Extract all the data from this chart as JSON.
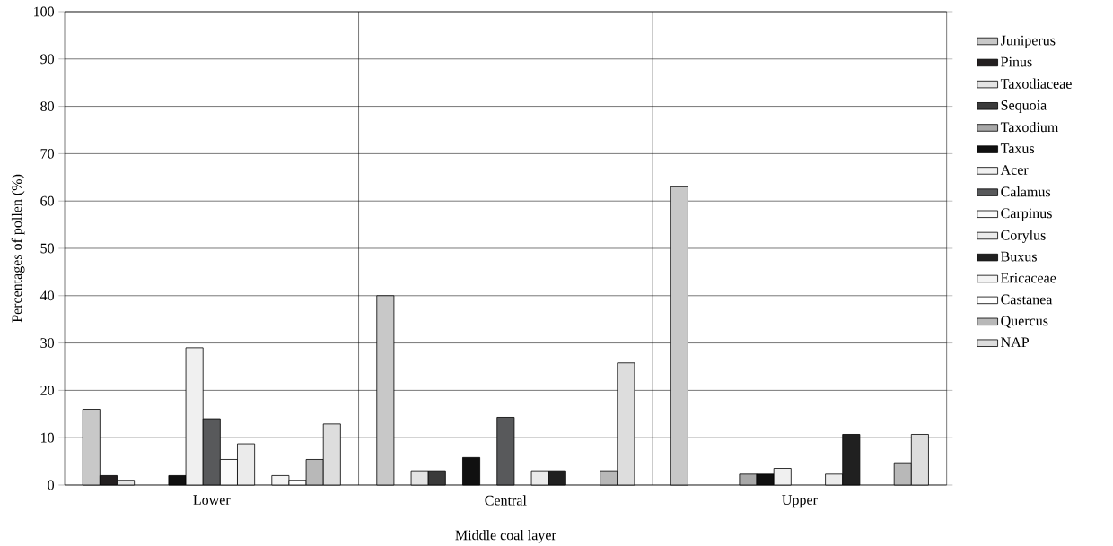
{
  "chart_data": {
    "type": "bar",
    "xlabel": "Middle coal layer",
    "ylabel": "Percentages of pollen (%)",
    "categories": [
      "Lower",
      "Central",
      "Upper"
    ],
    "series": [
      {
        "name": "Juniperus",
        "color": "#c8c8c8",
        "values": [
          16,
          40,
          63
        ]
      },
      {
        "name": "Pinus",
        "color": "#231f20",
        "values": [
          2,
          0,
          0
        ]
      },
      {
        "name": "Taxodiaceae",
        "color": "#e4e4e4",
        "values": [
          1,
          3,
          0
        ]
      },
      {
        "name": "Sequoia",
        "color": "#3a3a3a",
        "values": [
          0,
          3,
          0
        ]
      },
      {
        "name": "Taxodium",
        "color": "#a8a8a8",
        "values": [
          0,
          0,
          2.3
        ]
      },
      {
        "name": "Taxus",
        "color": "#101010",
        "values": [
          2,
          5.8,
          2.3
        ]
      },
      {
        "name": "Acer",
        "color": "#f0f0f0",
        "values": [
          29,
          0,
          3.5
        ]
      },
      {
        "name": "Calamus",
        "color": "#58595b",
        "values": [
          14,
          14.3,
          0
        ]
      },
      {
        "name": "Carpinus",
        "color": "#fafafa",
        "values": [
          5.4,
          0,
          0
        ]
      },
      {
        "name": "Corylus",
        "color": "#ebebeb",
        "values": [
          8.7,
          3,
          2.3
        ]
      },
      {
        "name": "Buxus",
        "color": "#202020",
        "values": [
          0,
          3,
          10.7
        ]
      },
      {
        "name": "Ericaceae",
        "color": "#f4f4f4",
        "values": [
          2,
          0,
          0
        ]
      },
      {
        "name": "Castanea",
        "color": "#ffffff",
        "values": [
          1,
          0,
          0
        ]
      },
      {
        "name": "Quercus",
        "color": "#b8b8b8",
        "values": [
          5.4,
          3,
          4.7
        ]
      },
      {
        "name": "NAP",
        "color": "#dddddd",
        "values": [
          12.9,
          25.8,
          10.7
        ]
      }
    ],
    "ylim": [
      0,
      100
    ],
    "yticks": [
      0,
      10,
      20,
      30,
      40,
      50,
      60,
      70,
      80,
      90,
      100
    ],
    "grid": "y",
    "legend": "right"
  }
}
